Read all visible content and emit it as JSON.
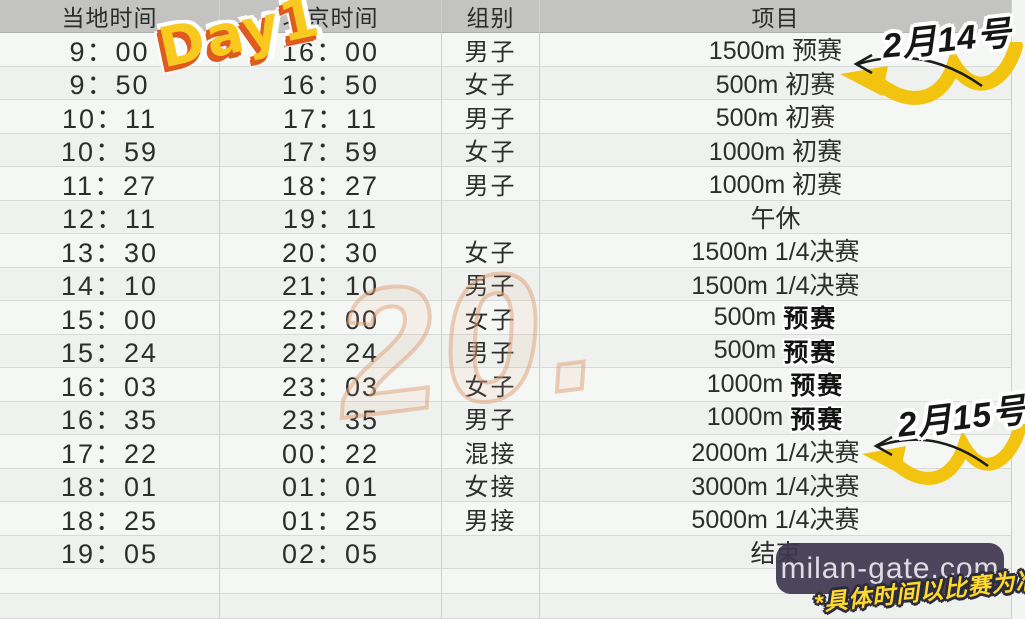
{
  "table": {
    "headers": [
      "当地时间",
      "北京时间",
      "组别",
      "项目"
    ],
    "rows": [
      {
        "local": "9：00",
        "beijing": "16：00",
        "group": "男子",
        "event": "1500m 预赛",
        "badge": ""
      },
      {
        "local": "9：50",
        "beijing": "16：50",
        "group": "女子",
        "event": "500m 初赛",
        "badge": ""
      },
      {
        "local": "10：11",
        "beijing": "17：11",
        "group": "男子",
        "event": "500m 初赛",
        "badge": ""
      },
      {
        "local": "10：59",
        "beijing": "17：59",
        "group": "女子",
        "event": "1000m 初赛",
        "badge": ""
      },
      {
        "local": "11：27",
        "beijing": "18：27",
        "group": "男子",
        "event": "1000m 初赛",
        "badge": ""
      },
      {
        "local": "12：11",
        "beijing": "19：11",
        "group": "",
        "event": "午休",
        "badge": ""
      },
      {
        "local": "13：30",
        "beijing": "20：30",
        "group": "女子",
        "event": "1500m 1/4决赛",
        "badge": ""
      },
      {
        "local": "14：10",
        "beijing": "21：10",
        "group": "男子",
        "event": "1500m 1/4决赛",
        "badge": ""
      },
      {
        "local": "15：00",
        "beijing": "22：00",
        "group": "女子",
        "event": "500m ",
        "badge": "预赛"
      },
      {
        "local": "15：24",
        "beijing": "22：24",
        "group": "男子",
        "event": "500m ",
        "badge": "预赛"
      },
      {
        "local": "16：03",
        "beijing": "23：03",
        "group": "女子",
        "event": "1000m ",
        "badge": "预赛"
      },
      {
        "local": "16：35",
        "beijing": "23：35",
        "group": "男子",
        "event": "1000m ",
        "badge": "预赛"
      },
      {
        "local": "17：22",
        "beijing": "00：22",
        "group": "混接",
        "event": "2000m 1/4决赛",
        "badge": ""
      },
      {
        "local": "18：01",
        "beijing": "01：01",
        "group": "女接",
        "event": "3000m 1/4决赛",
        "badge": ""
      },
      {
        "local": "18：25",
        "beijing": "01：25",
        "group": "男接",
        "event": "5000m 1/4决赛",
        "badge": ""
      },
      {
        "local": "19：05",
        "beijing": "02：05",
        "group": "",
        "event": "结束",
        "badge": ""
      },
      {
        "local": "",
        "beijing": "",
        "group": "",
        "event": "",
        "badge": ""
      },
      {
        "local": "",
        "beijing": "",
        "group": "",
        "event": "",
        "badge": ""
      }
    ]
  },
  "decorations": {
    "day_sticker": "Day1",
    "date_top": "2月14号",
    "date_bottom": "2月15号",
    "watermark_large": "20.",
    "watermark_pill": "milan-gate.com",
    "disclaimer": "*具体时间以比赛为准",
    "colors": {
      "accent_yellow": "#f2c40f",
      "sticker_fill": "#f9c91f",
      "sticker_outline": "#e05b1e",
      "header_bg": "#c3c4c2",
      "pill_bg": "#3f3750",
      "watermark_outline": "#dfa076",
      "disclaimer_yellow": "#ffd92e"
    }
  }
}
